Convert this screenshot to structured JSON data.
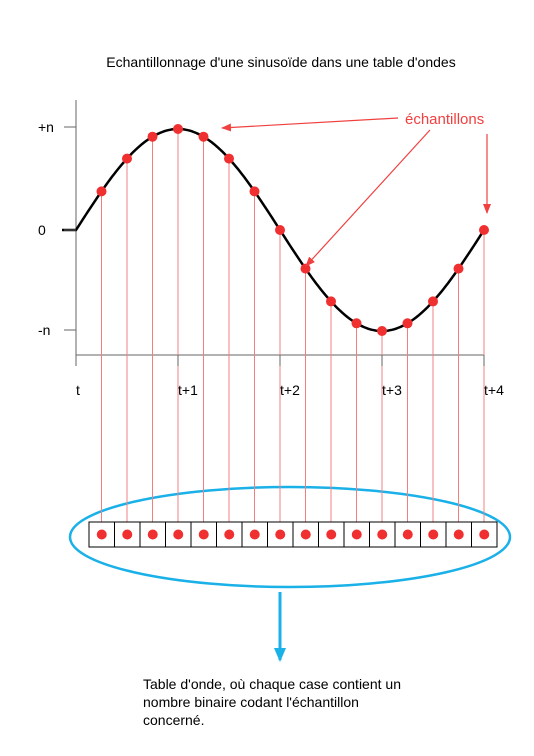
{
  "title": "Echantillonnage d'une sinusoïde dans une table d'ondes",
  "axis": {
    "y_labels": [
      "+n",
      "0",
      "-n"
    ],
    "x_labels": [
      "t",
      "t+1",
      "t+2",
      "t+3",
      "t+4"
    ]
  },
  "annotation": "échantillons",
  "caption": [
    "Table d'onde, où chaque case contient un",
    "nombre binaire codant l'échantillon",
    "concerné."
  ]
}
